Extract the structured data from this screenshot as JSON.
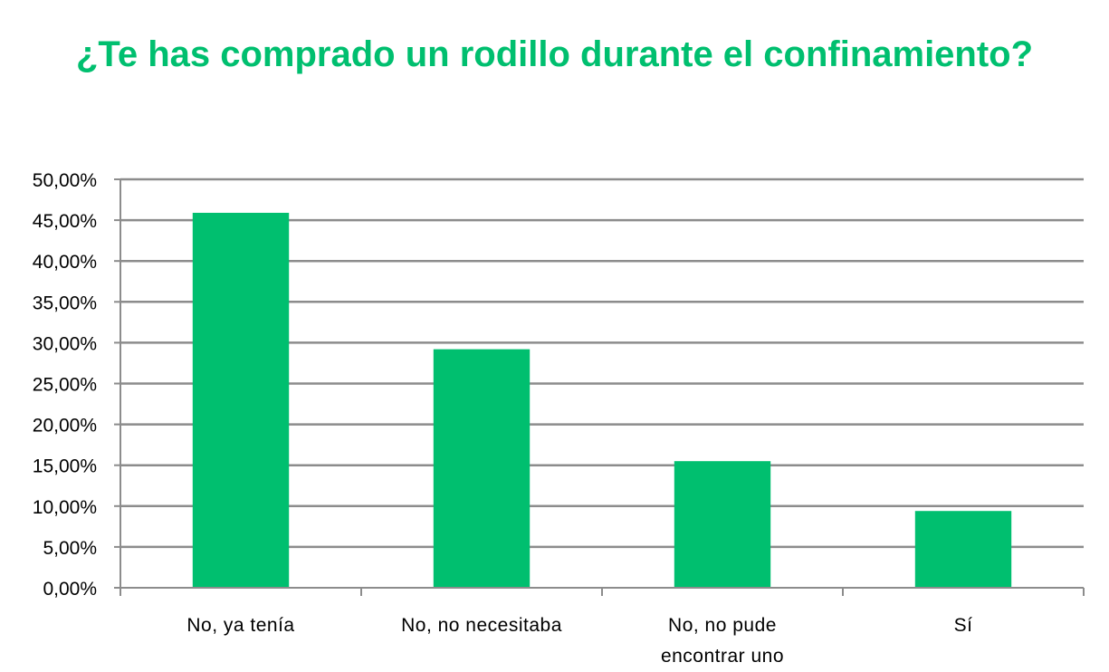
{
  "chart_data": {
    "type": "bar",
    "title": "¿Te has comprado un rodillo durante el confinamiento?",
    "categories": [
      [
        "No, ya tenía"
      ],
      [
        "No, no necesitaba"
      ],
      [
        "No, no pude",
        "encontrar uno"
      ],
      [
        "Sí"
      ]
    ],
    "values": [
      45.9,
      29.2,
      15.5,
      9.4
    ],
    "ylim": [
      0,
      50
    ],
    "ytick_step": 5,
    "ytick_labels": [
      "0,00%",
      "5,00%",
      "10,00%",
      "15,00%",
      "20,00%",
      "25,00%",
      "30,00%",
      "35,00%",
      "40,00%",
      "45,00%",
      "50,00%"
    ],
    "xlabel": "",
    "ylabel": "",
    "grid": true,
    "legend": "none",
    "bar_color": "#00BF6F",
    "title_color": "#00BF6F",
    "grid_color": "#8C8C8C"
  }
}
